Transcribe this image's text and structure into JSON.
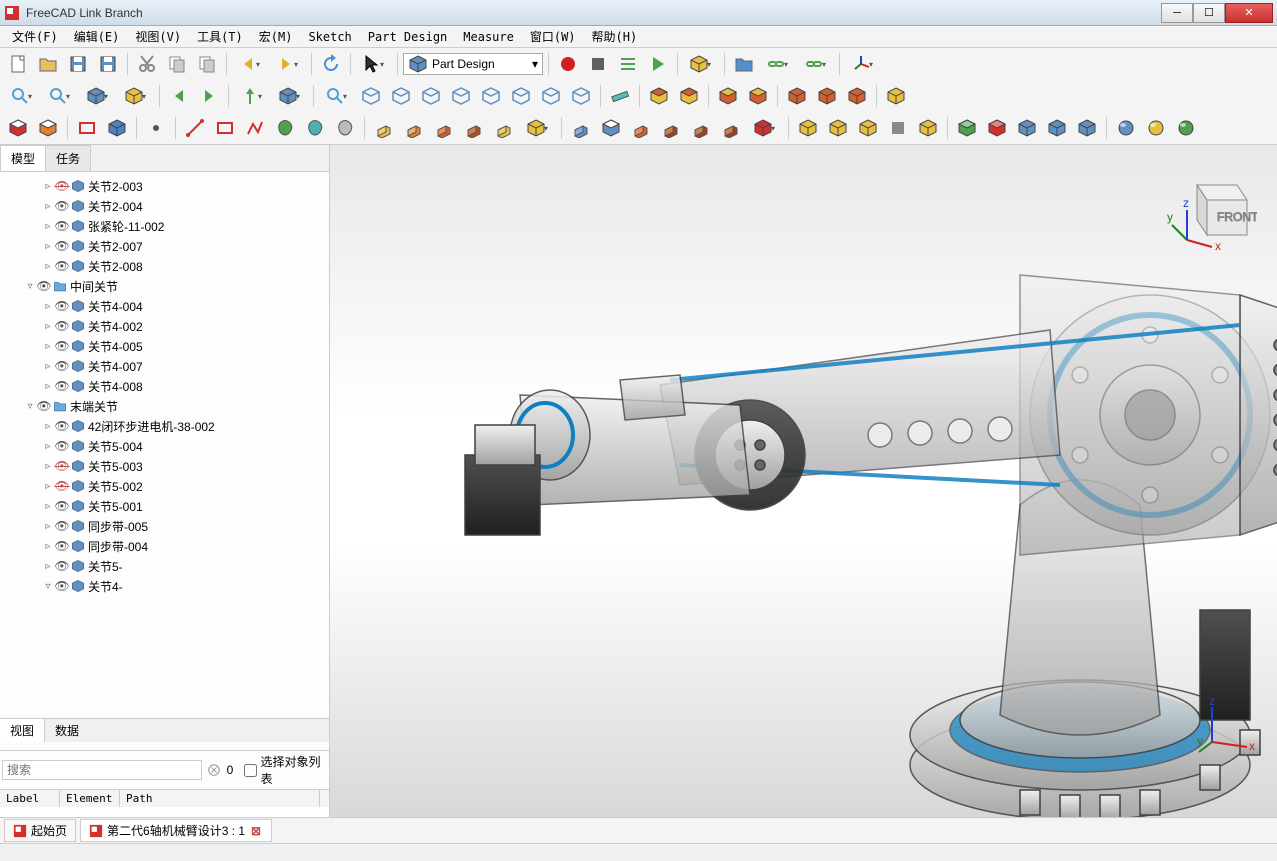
{
  "window": {
    "title": "FreeCAD Link Branch"
  },
  "menu": [
    "文件(F)",
    "编辑(E)",
    "视图(V)",
    "工具(T)",
    "宏(M)",
    "Sketch",
    "Part Design",
    "Measure",
    "窗口(W)",
    "帮助(H)"
  ],
  "workbench_selector": {
    "label": "Part Design"
  },
  "side_panel": {
    "tabs": [
      "模型",
      "任务"
    ],
    "active_tab": 0,
    "prop_tabs": [
      "视图",
      "数据"
    ],
    "prop_active": 0,
    "search_placeholder": "搜索",
    "search_count": "0",
    "checkbox_label": "选择对象列表",
    "table_cols": [
      "Label",
      "Element",
      "Path"
    ],
    "tree": [
      {
        "indent": 2,
        "exp": "▹",
        "visible": false,
        "type": "part",
        "label": "关节2-003"
      },
      {
        "indent": 2,
        "exp": "▹",
        "visible": true,
        "type": "part",
        "label": "关节2-004"
      },
      {
        "indent": 2,
        "exp": "▹",
        "visible": true,
        "type": "part",
        "label": "张紧轮-11-002"
      },
      {
        "indent": 2,
        "exp": "▹",
        "visible": true,
        "type": "part",
        "label": "关节2-007"
      },
      {
        "indent": 2,
        "exp": "▹",
        "visible": true,
        "type": "part",
        "label": "关节2-008"
      },
      {
        "indent": 1,
        "exp": "▿",
        "visible": true,
        "type": "folder",
        "label": "中间关节"
      },
      {
        "indent": 2,
        "exp": "▹",
        "visible": true,
        "type": "part",
        "label": "关节4-004"
      },
      {
        "indent": 2,
        "exp": "▹",
        "visible": true,
        "type": "part",
        "label": "关节4-002"
      },
      {
        "indent": 2,
        "exp": "▹",
        "visible": true,
        "type": "part",
        "label": "关节4-005"
      },
      {
        "indent": 2,
        "exp": "▹",
        "visible": true,
        "type": "part",
        "label": "关节4-007"
      },
      {
        "indent": 2,
        "exp": "▹",
        "visible": true,
        "type": "part",
        "label": "关节4-008"
      },
      {
        "indent": 1,
        "exp": "▿",
        "visible": true,
        "type": "folder",
        "label": "末端关节"
      },
      {
        "indent": 2,
        "exp": "▹",
        "visible": true,
        "type": "part",
        "label": "42闭环步进电机-38-002"
      },
      {
        "indent": 2,
        "exp": "▹",
        "visible": true,
        "type": "part",
        "label": "关节5-004"
      },
      {
        "indent": 2,
        "exp": "▹",
        "visible": false,
        "type": "part",
        "label": "关节5-003"
      },
      {
        "indent": 2,
        "exp": "▹",
        "visible": false,
        "type": "part",
        "label": "关节5-002"
      },
      {
        "indent": 2,
        "exp": "▹",
        "visible": true,
        "type": "part",
        "label": "关节5-001"
      },
      {
        "indent": 2,
        "exp": "▹",
        "visible": true,
        "type": "part",
        "label": "同步带-005"
      },
      {
        "indent": 2,
        "exp": "▹",
        "visible": true,
        "type": "part",
        "label": "同步带-004"
      },
      {
        "indent": 2,
        "exp": "▹",
        "visible": true,
        "type": "part",
        "label": "关节5-"
      },
      {
        "indent": 2,
        "exp": "▿",
        "visible": true,
        "type": "part",
        "label": "关节4-"
      }
    ]
  },
  "doc_tabs": [
    {
      "label": "起始页",
      "closable": false,
      "active": false
    },
    {
      "label": "第二代6轴机械臂设计3 : 1",
      "closable": true,
      "active": true
    }
  ],
  "viewport": {
    "background_top": "#e8e8e8",
    "background_bottom": "#d8d8d8",
    "model_fill": "#d0d0d0",
    "model_stroke": "#404040",
    "model_accent": "#1080c0",
    "model_dark": "#303030",
    "model_light": "#f8f8f8",
    "nav_cube_label": "FRONT",
    "axes": {
      "x_color": "#d02020",
      "y_color": "#208020",
      "z_color": "#2040d0",
      "labels": [
        "x",
        "y",
        "z"
      ]
    }
  },
  "toolbar_colors": {
    "new": "#fff",
    "open": "#e8c060",
    "save": "#6090c0",
    "cut": "#888",
    "copy": "#ccc",
    "paste": "#ccc",
    "undo": "#e0b030",
    "redo": "#e0b030",
    "refresh": "#5090d0",
    "arrow": "#333",
    "record": "#d02020",
    "stop": "#606060",
    "macros": "#50a050",
    "play": "#50a050",
    "part": "#e8c040",
    "link": "#5090d0",
    "group": "#50a050",
    "zoom": "#50a0d0",
    "stdview": "#6090c0",
    "nav": "#50a050",
    "axo": "#6090c0",
    "wire": "#6090c0",
    "measure": "#50c0c0",
    "sel": "#e8c040",
    "clip": "#d06030",
    "sk_red": "#d03030",
    "sk_orange": "#e08030",
    "sk_blue": "#5080c0",
    "sk_green": "#50a050",
    "sk_teal": "#50b0b0",
    "pad": "#e8c040",
    "rev": "#e08030",
    "loft": "#d06030",
    "pipe": "#b05020",
    "helix": "#e8c040",
    "pocket": "#6090c0",
    "hole": "#6090c0",
    "groove": "#d06030",
    "bool": "#a04020",
    "pattern": "#e8c040",
    "fx": "#888",
    "mir": "#50a050",
    "trans": "#d03030",
    "prim": "#6090c0"
  }
}
